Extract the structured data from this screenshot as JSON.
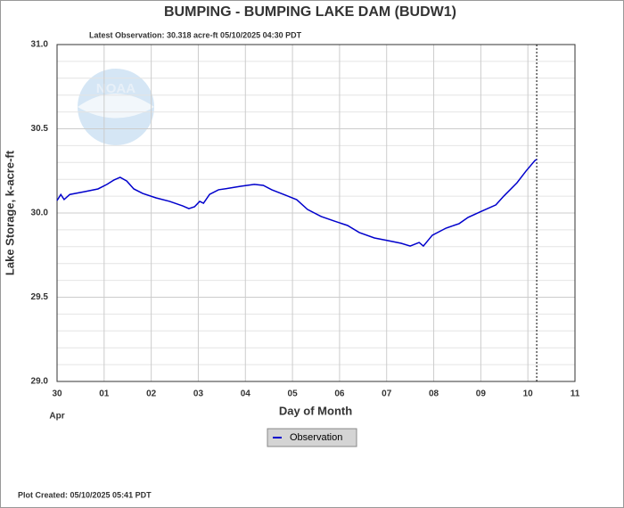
{
  "chart_data": {
    "type": "line",
    "title": "BUMPING - BUMPING LAKE DAM  (BUDW1)",
    "subtitle": "Latest Observation: 30.318 acre-ft 05/10/2025 04:30 PDT",
    "xlabel": "Day of Month",
    "x_sublabel": "Apr",
    "ylabel": "Lake Storage, k-acre-ft",
    "footer": "Plot Created: 05/10/2025 05:41 PDT",
    "watermark": "NOAA",
    "xlim": [
      0,
      11
    ],
    "xticks": [
      {
        "value": 0,
        "label": "30"
      },
      {
        "value": 1,
        "label": "01"
      },
      {
        "value": 2,
        "label": "02"
      },
      {
        "value": 3,
        "label": "03"
      },
      {
        "value": 4,
        "label": "04"
      },
      {
        "value": 5,
        "label": "05"
      },
      {
        "value": 6,
        "label": "06"
      },
      {
        "value": 7,
        "label": "07"
      },
      {
        "value": 8,
        "label": "08"
      },
      {
        "value": 9,
        "label": "09"
      },
      10,
      11
    ],
    "ylim": [
      29,
      31
    ],
    "yticks": [
      {
        "value": 29,
        "label": "29.0"
      },
      {
        "value": 29.5,
        "label": "29.5"
      },
      {
        "value": 30,
        "label": "30.0"
      },
      {
        "value": 30.5,
        "label": "30.5"
      },
      {
        "value": 31,
        "label": "31.0"
      }
    ],
    "yminor": [
      29.1,
      29.2,
      29.3,
      29.4,
      29.6,
      29.7,
      29.8,
      29.9,
      30.1,
      30.2,
      30.3,
      30.4,
      30.6,
      30.7,
      30.8,
      30.9
    ],
    "grid": true,
    "marker_x": 10.1875,
    "legend": "bottom",
    "series": [
      {
        "name": "Observation",
        "color": "#0000cc",
        "x": [
          0,
          0.08,
          0.15,
          0.27,
          0.59,
          0.87,
          1.06,
          1.21,
          1.34,
          1.48,
          1.63,
          1.82,
          2.1,
          2.39,
          2.67,
          2.8,
          2.92,
          3.03,
          3.11,
          3.24,
          3.43,
          3.67,
          3.9,
          4.19,
          4.38,
          4.56,
          4.85,
          5.09,
          5.32,
          5.61,
          5.89,
          6.17,
          6.42,
          6.74,
          7.03,
          7.31,
          7.5,
          7.69,
          7.78,
          7.97,
          8.26,
          8.54,
          8.73,
          9.02,
          9.32,
          9.49,
          9.77,
          9.96,
          10.15,
          10.19
        ],
        "values": [
          30.074,
          30.11,
          30.08,
          30.11,
          30.127,
          30.143,
          30.17,
          30.196,
          30.212,
          30.19,
          30.143,
          30.116,
          30.09,
          30.069,
          30.042,
          30.026,
          30.037,
          30.069,
          30.058,
          30.111,
          30.138,
          30.148,
          30.159,
          30.17,
          30.164,
          30.138,
          30.106,
          30.079,
          30.021,
          29.979,
          29.952,
          29.926,
          29.884,
          29.852,
          29.836,
          29.82,
          29.804,
          29.825,
          29.804,
          29.868,
          29.91,
          29.937,
          29.974,
          30.011,
          30.048,
          30.101,
          30.18,
          30.249,
          30.312,
          30.318
        ]
      }
    ]
  }
}
